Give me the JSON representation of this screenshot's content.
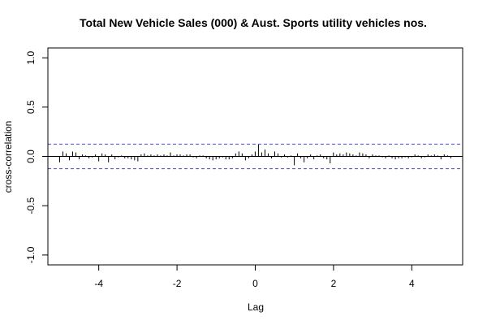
{
  "chart_data": {
    "type": "bar",
    "title": "Total New Vehicle Sales (000) & Aust. Sports utility vehicles nos.",
    "xlabel": "Lag",
    "ylabel": "cross-correlation",
    "xlim": [
      -5.3,
      5.3
    ],
    "ylim": [
      -1.1,
      1.1
    ],
    "x_ticks": [
      -4,
      -2,
      0,
      2,
      4
    ],
    "x_tick_labels": [
      "-4",
      "-2",
      "0",
      "2",
      "4"
    ],
    "y_ticks": [
      -1.0,
      -0.5,
      0.0,
      0.5,
      1.0
    ],
    "y_tick_labels": [
      "-1.0",
      "-0.5",
      "0.0",
      "0.5",
      "1.0"
    ],
    "confidence_band": 0.125,
    "grid": false,
    "colors": {
      "bars": "#000000",
      "band": "#4b4bdc",
      "zero_line": "#000000"
    },
    "lag_start": -5,
    "lag_step": 0.0833,
    "values": [
      -0.06,
      0.05,
      0.03,
      -0.04,
      0.05,
      0.04,
      -0.03,
      0.02,
      0.01,
      -0.02,
      -0.01,
      0.02,
      -0.05,
      0.03,
      0.02,
      -0.06,
      0.02,
      -0.03,
      -0.01,
      0.01,
      -0.02,
      -0.02,
      -0.03,
      -0.04,
      -0.05,
      0.02,
      0.03,
      0.01,
      0.02,
      0.01,
      0.02,
      0.01,
      0.02,
      0.01,
      0.04,
      0.01,
      0.02,
      0.02,
      0.01,
      0.02,
      0.02,
      -0.01,
      -0.02,
      0.01,
      0.01,
      -0.02,
      -0.03,
      -0.04,
      -0.03,
      -0.02,
      -0.01,
      -0.03,
      -0.03,
      -0.02,
      0.03,
      0.05,
      0.03,
      -0.04,
      -0.02,
      0.02,
      0.05,
      0.12,
      0.04,
      0.07,
      0.03,
      -0.02,
      0.05,
      0.03,
      -0.01,
      0.02,
      -0.01,
      0.01,
      -0.09,
      0.03,
      -0.02,
      -0.06,
      -0.02,
      0.02,
      -0.03,
      0.01,
      0.02,
      -0.02,
      -0.03,
      -0.07,
      0.04,
      0.02,
      0.03,
      0.02,
      0.04,
      0.03,
      0.02,
      0.01,
      0.04,
      0.03,
      0.02,
      -0.02,
      0.02,
      0.01,
      0.01,
      -0.01,
      -0.02,
      0.01,
      -0.02,
      -0.03,
      -0.02,
      -0.02,
      -0.01,
      -0.02,
      -0.01,
      0.02,
      0.01,
      -0.02,
      -0.01,
      0.02,
      0.01,
      0.02,
      0.01,
      -0.03,
      0.02,
      0.01,
      -0.02
    ]
  }
}
